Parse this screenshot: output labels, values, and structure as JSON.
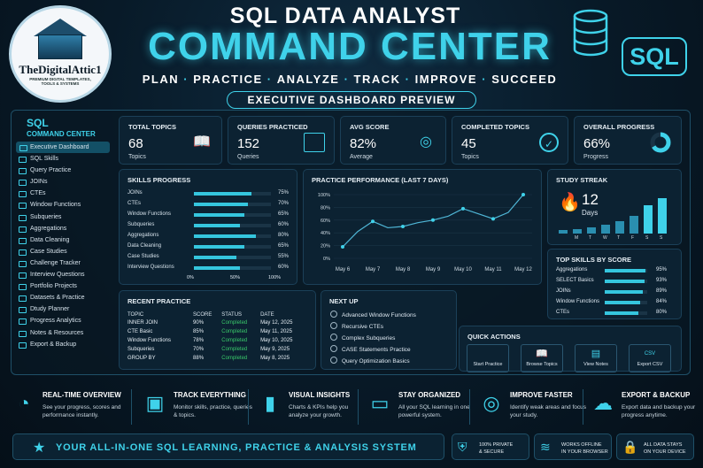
{
  "logo": {
    "name": "TheDigitalAttic1",
    "tagline": "PREMIUM DIGITAL TEMPLATES, TOOLS & SYSTEMS"
  },
  "header": {
    "title_top": "SQL DATA ANALYST",
    "title_main": "COMMAND CENTER",
    "steps": [
      "PLAN",
      "PRACTICE",
      "ANALYZE",
      "TRACK",
      "IMPROVE",
      "SUCCEED"
    ],
    "preview": "EXECUTIVE DASHBOARD PREVIEW",
    "badge": "SQL",
    "accent": "#3fd2ea"
  },
  "sidebar": {
    "title": "SQL",
    "subtitle": "COMMAND CENTER",
    "items": [
      "Executive Dashboard",
      "SQL Skills",
      "Query Practice",
      "JOINs",
      "CTEs",
      "Window Functions",
      "Subqueries",
      "Aggregations",
      "Data Cleaning",
      "Case Studies",
      "Challenge Tracker",
      "Interview Questions",
      "Portfolio Projects",
      "Datasets & Practice",
      "Dtudy Planner",
      "Progress Analytics",
      "Notes & Resources",
      "Export & Backup"
    ]
  },
  "kpis": [
    {
      "label": "TOTAL TOPICS",
      "value": "68",
      "unit": "Topics",
      "icon": "book-icon"
    },
    {
      "label": "QUERIES PRACTICED",
      "value": "152",
      "unit": "Queries",
      "icon": "code-icon"
    },
    {
      "label": "AVG SCORE",
      "value": "82%",
      "unit": "Average",
      "icon": "target-icon"
    },
    {
      "label": "COMPLETED TOPICS",
      "value": "45",
      "unit": "Topics",
      "icon": "check-circle-icon"
    },
    {
      "label": "OVERALL PROGRESS",
      "value": "66%",
      "unit": "Progress",
      "icon": "donut-icon",
      "fraction": 0.66
    }
  ],
  "skills": {
    "title": "SKILLS PROGRESS",
    "axis": [
      "0%",
      "50%",
      "100%"
    ],
    "items": [
      {
        "name": "JOINs",
        "pct": 75,
        "label": "75%"
      },
      {
        "name": "CTEs",
        "pct": 70,
        "label": "70%"
      },
      {
        "name": "Window Functions",
        "pct": 65,
        "label": "65%"
      },
      {
        "name": "Subqueries",
        "pct": 60,
        "label": "60%"
      },
      {
        "name": "Aggregations",
        "pct": 80,
        "label": "80%"
      },
      {
        "name": "Data Cleaning",
        "pct": 65,
        "label": "65%"
      },
      {
        "name": "Case Studies",
        "pct": 55,
        "label": "55%"
      },
      {
        "name": "Interview Questions",
        "pct": 60,
        "label": "60%"
      }
    ]
  },
  "chart_data": {
    "type": "line",
    "title": "PRACTICE PERFORMANCE (LAST 7 DAYS)",
    "categories": [
      "May 6",
      "May 7",
      "May 8",
      "May 9",
      "May 10",
      "May 11",
      "May 12"
    ],
    "x": [
      "May 6",
      "May 6.5",
      "May 7",
      "May 7.5",
      "May 8",
      "May 8.5",
      "May 9",
      "May 9.5",
      "May 10",
      "May 10.5",
      "May 11",
      "May 11.5",
      "May 12"
    ],
    "values": [
      18,
      42,
      58,
      48,
      50,
      56,
      60,
      66,
      78,
      70,
      62,
      72,
      100
    ],
    "yticks": [
      "0%",
      "20%",
      "40%",
      "60%",
      "80%",
      "100%"
    ],
    "ylim": [
      0,
      100
    ],
    "grid": true
  },
  "streak": {
    "title": "STUDY STREAK",
    "value": "12",
    "unit": "Days",
    "days": [
      "M",
      "T",
      "W",
      "T",
      "F",
      "S",
      "S"
    ],
    "levels": [
      0.1,
      0.13,
      0.18,
      0.25,
      0.36,
      0.5,
      0.8,
      1.0
    ],
    "icon": "flame-icon"
  },
  "recent": {
    "title": "RECENT PRACTICE",
    "headers": [
      "TOPIC",
      "SCORE",
      "STATUS",
      "DATE"
    ],
    "rows": [
      [
        "INNER JOIN",
        "90%",
        "Completed",
        "May 12, 2025"
      ],
      [
        "CTE Basic",
        "85%",
        "Completed",
        "May 11, 2025"
      ],
      [
        "Window Functions",
        "78%",
        "Completed",
        "May 10, 2025"
      ],
      [
        "Subqueries",
        "70%",
        "Completed",
        "May 9, 2025"
      ],
      [
        "GROUP BY",
        "88%",
        "Completed",
        "May 8, 2025"
      ]
    ]
  },
  "next_up": {
    "title": "NEXT UP",
    "items": [
      "Advanced Window Functions",
      "Recursive CTEs",
      "Complex Subqueries",
      "CASE Statements Practice",
      "Query Optimization Basics"
    ]
  },
  "quick": {
    "title": "QUICK ACTIONS",
    "items": [
      {
        "label": "Start Practice",
        "icon": "code-icon"
      },
      {
        "label": "Browse Topics",
        "icon": "book-icon"
      },
      {
        "label": "View Notes",
        "icon": "notes-icon"
      },
      {
        "label": "Export CSV",
        "icon": "csv-file-icon"
      }
    ]
  },
  "top_skills": {
    "title": "TOP SKILLS BY SCORE",
    "items": [
      {
        "name": "Aggregations",
        "pct": 95,
        "label": "95%"
      },
      {
        "name": "SELECT Basics",
        "pct": 93,
        "label": "93%"
      },
      {
        "name": "JOINs",
        "pct": 89,
        "label": "89%"
      },
      {
        "name": "Window Functions",
        "pct": 84,
        "label": "84%"
      },
      {
        "name": "CTEs",
        "pct": 80,
        "label": "80%"
      }
    ]
  },
  "features": [
    {
      "title": "REAL-TIME OVERVIEW",
      "desc": "See your progress, scores and performance instantly.",
      "icon": "gauge-icon"
    },
    {
      "title": "TRACK EVERYTHING",
      "desc": "Monitor skills, practice, queries & topics.",
      "icon": "clipboard-icon"
    },
    {
      "title": "VISUAL INSIGHTS",
      "desc": "Charts & KPIs help you analyze your growth.",
      "icon": "bar-chart-icon"
    },
    {
      "title": "STAY ORGANIZED",
      "desc": "All your SQL learning in one powerful system.",
      "icon": "folder-icon"
    },
    {
      "title": "IMPROVE FASTER",
      "desc": "Identify weak areas and focus your study.",
      "icon": "target-icon"
    },
    {
      "title": "EXPORT & BACKUP",
      "desc": "Export data and backup your progress anytime.",
      "icon": "cloud-upload-icon"
    }
  ],
  "banner": "YOUR ALL-IN-ONE SQL LEARNING, PRACTICE & ANALYSIS SYSTEM",
  "trust": [
    {
      "line1": "100% PRIVATE",
      "line2": "& SECURE",
      "icon": "shield-check-icon"
    },
    {
      "line1": "WORKS OFFLINE",
      "line2": "IN YOUR BROWSER",
      "icon": "wifi-icon"
    },
    {
      "line1": "ALL DATA STAYS",
      "line2": "ON YOUR DEVICE",
      "icon": "lock-icon"
    }
  ]
}
